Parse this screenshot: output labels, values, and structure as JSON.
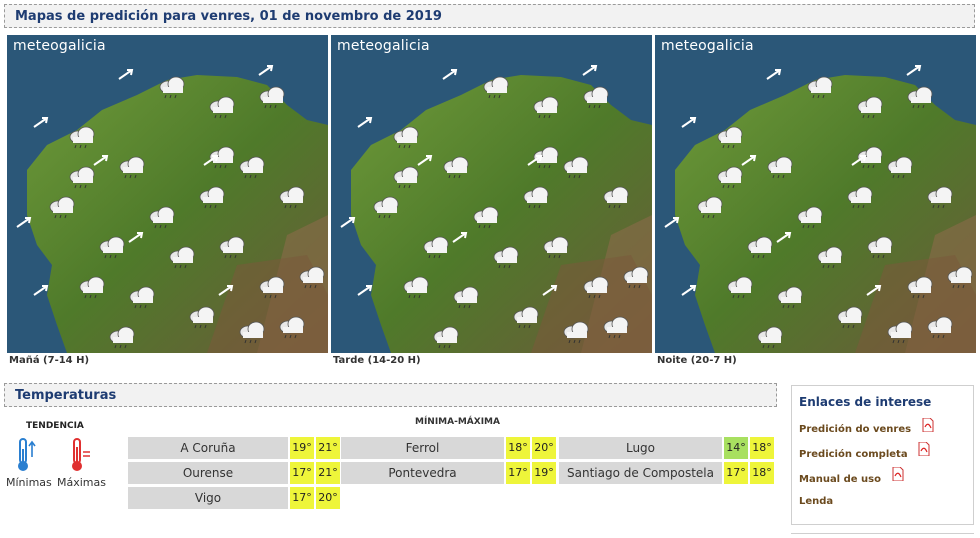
{
  "header": {
    "title": "Mapas de predición para venres, 01 de novembro de 2019"
  },
  "maps": [
    {
      "brand": "meteogalicia",
      "label": "Mañá (7-14 H)"
    },
    {
      "brand": "meteogalicia",
      "label": "Tarde (14-20 H)"
    },
    {
      "brand": "meteogalicia",
      "label": "Noite (20-7 H)"
    }
  ],
  "temperatures": {
    "title": "Temperaturas",
    "tendencia": {
      "title": "TENDENCIA",
      "min_label": "Mínimas",
      "max_label": "Máximas"
    },
    "minmax_title": "MÍNIMA-MÁXIMA",
    "cities": [
      {
        "name": "A Coruña",
        "min": "19°",
        "max": "21°"
      },
      {
        "name": "Ferrol",
        "min": "18°",
        "max": "20°"
      },
      {
        "name": "Lugo",
        "min": "14°",
        "max": "18°"
      },
      {
        "name": "Ourense",
        "min": "17°",
        "max": "21°"
      },
      {
        "name": "Pontevedra",
        "min": "17°",
        "max": "19°"
      },
      {
        "name": "Santiago de Compostela",
        "min": "17°",
        "max": "18°"
      },
      {
        "name": "Vigo",
        "min": "17°",
        "max": "20°"
      }
    ]
  },
  "links": {
    "title": "Enlaces de interese",
    "items": [
      {
        "label": "Predición do venres",
        "icon": "pdf-icon"
      },
      {
        "label": "Predición completa",
        "icon": "pdf-icon"
      },
      {
        "label": "Manual de uso",
        "icon": "pdf-icon"
      },
      {
        "label": "Lenda"
      }
    ]
  },
  "colors": {
    "title": "#1e3c72",
    "link": "#6b4a1e",
    "temp_yellow": "#eef53a",
    "temp_green": "#a8e060",
    "city_bg": "#d8d8d8"
  }
}
